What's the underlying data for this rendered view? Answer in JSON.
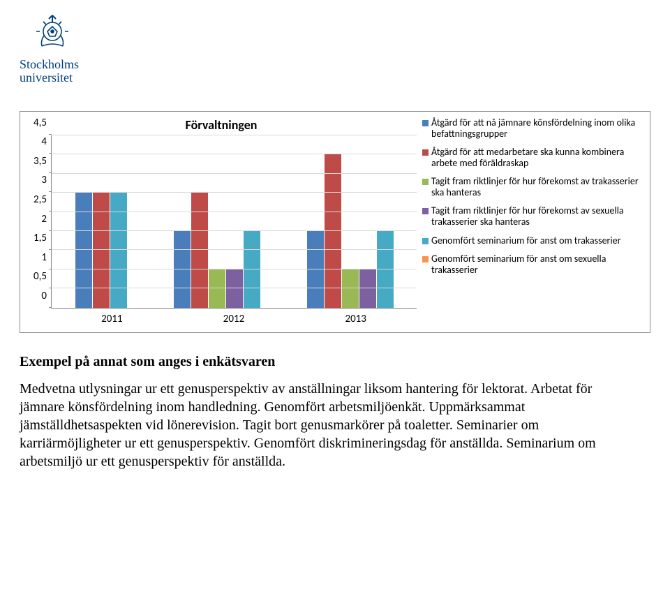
{
  "header": {
    "university_line1": "Stockholms",
    "university_line2": "universitet",
    "crest_stroke": "#003f7d"
  },
  "chart": {
    "title": "Förvaltningen",
    "type": "bar",
    "ylim": [
      0,
      4.5
    ],
    "ytick_step": 0.5,
    "yticks": [
      "0",
      "0,5",
      "1",
      "1,5",
      "2",
      "2,5",
      "3",
      "3,5",
      "4",
      "4,5"
    ],
    "years": [
      "2011",
      "2012",
      "2013"
    ],
    "series": [
      {
        "label": "Åtgärd för att nå jämnare könsfördelning inom olika befattningsgrupper",
        "color": "#4a7ebb"
      },
      {
        "label": "Åtgärd för att medarbetare ska kunna kombinera arbete med föräldraskap",
        "color": "#be4b48"
      },
      {
        "label": "Tagit fram riktlinjer för hur förekomst av trakasserier ska hanteras",
        "color": "#98b954"
      },
      {
        "label": "Tagit fram riktlinjer för hur förekomst av sexuella trakasserier ska hanteras",
        "color": "#7d60a0"
      },
      {
        "label": "Genomfört seminarium för anst om trakasserier",
        "color": "#46aac5"
      },
      {
        "label": "Genomfört seminarium för anst om sexuella trakasserier",
        "color": "#f79646"
      }
    ],
    "groups": [
      {
        "year": "2011",
        "bars": [
          {
            "si": 0,
            "v": 3
          },
          {
            "si": 1,
            "v": 3
          },
          {
            "si": 4,
            "v": 3
          }
        ]
      },
      {
        "year": "2012",
        "bars": [
          {
            "si": 0,
            "v": 2
          },
          {
            "si": 1,
            "v": 3
          },
          {
            "si": 2,
            "v": 1
          },
          {
            "si": 3,
            "v": 1
          },
          {
            "si": 4,
            "v": 2
          }
        ]
      },
      {
        "year": "2013",
        "bars": [
          {
            "si": 0,
            "v": 2
          },
          {
            "si": 1,
            "v": 4
          },
          {
            "si": 2,
            "v": 1
          },
          {
            "si": 3,
            "v": 1
          },
          {
            "si": 4,
            "v": 2
          }
        ]
      }
    ],
    "background_color": "#ffffff",
    "grid_color": "#d9d9d9",
    "axis_color": "#888888",
    "title_fontsize": 18,
    "label_fontsize": 15,
    "legend_fontsize": 14
  },
  "body": {
    "heading": "Exempel på annat som anges i enkätsvaren",
    "paragraph": "Medvetna utlysningar ur ett genusperspektiv av anställningar liksom hantering för lektorat. Arbetat för jämnare könsfördelning inom handledning. Genomfört arbetsmiljöenkät. Uppmärksammat jämställdhetsaspekten vid lönerevision. Tagit bort genusmarkörer på toaletter. Seminarier om karriärmöjligheter ur ett genusperspektiv. Genomfört diskrimineringsdag för anställda. Seminarium om arbetsmiljö ur ett genusperspektiv för anställda."
  }
}
